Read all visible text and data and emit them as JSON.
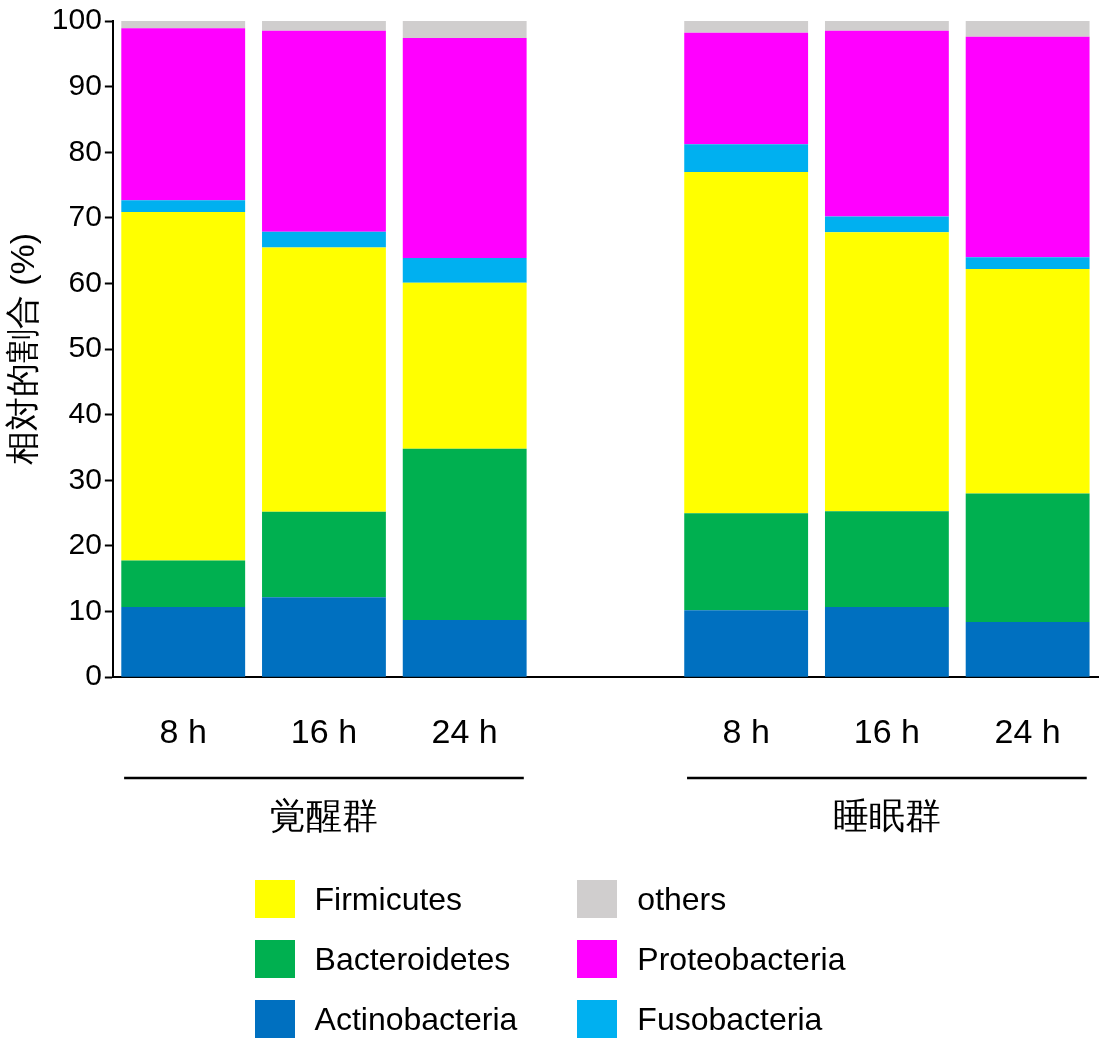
{
  "chart_data": {
    "type": "bar",
    "stacked": true,
    "ylabel": "相対的割合 (%)",
    "categories": [
      "8 h",
      "16 h",
      "24 h",
      null,
      "8 h",
      "16 h",
      "24 h"
    ],
    "series": [
      {
        "name": "Actinobacteria",
        "color": "#0070c0",
        "values": [
          10.7,
          12.2,
          8.7,
          null,
          10.2,
          10.7,
          8.4
        ]
      },
      {
        "name": "Bacteroidetes",
        "color": "#00b050",
        "values": [
          7.1,
          13.0,
          26.1,
          null,
          14.8,
          14.6,
          19.6
        ]
      },
      {
        "name": "Firmicutes",
        "color": "#ffff00",
        "values": [
          53.1,
          40.3,
          25.3,
          null,
          52.0,
          42.5,
          34.2
        ]
      },
      {
        "name": "Fusobacteria",
        "color": "#00b0f0",
        "values": [
          1.8,
          2.4,
          3.8,
          null,
          4.2,
          2.4,
          1.8
        ]
      },
      {
        "name": "Proteobacteria",
        "color": "#ff00ff",
        "values": [
          26.2,
          30.6,
          33.5,
          null,
          17.0,
          28.3,
          33.6
        ]
      },
      {
        "name": "others",
        "color": "#d0cece",
        "values": [
          1.1,
          1.5,
          2.6,
          null,
          1.8,
          1.5,
          2.4
        ]
      }
    ],
    "ylim": [
      0,
      100
    ],
    "yticks": [
      0,
      10,
      20,
      30,
      40,
      50,
      60,
      70,
      80,
      90,
      100
    ],
    "grid": false,
    "legend": "bottom",
    "annotations": [
      "覚醒群",
      "睡眠群"
    ]
  }
}
